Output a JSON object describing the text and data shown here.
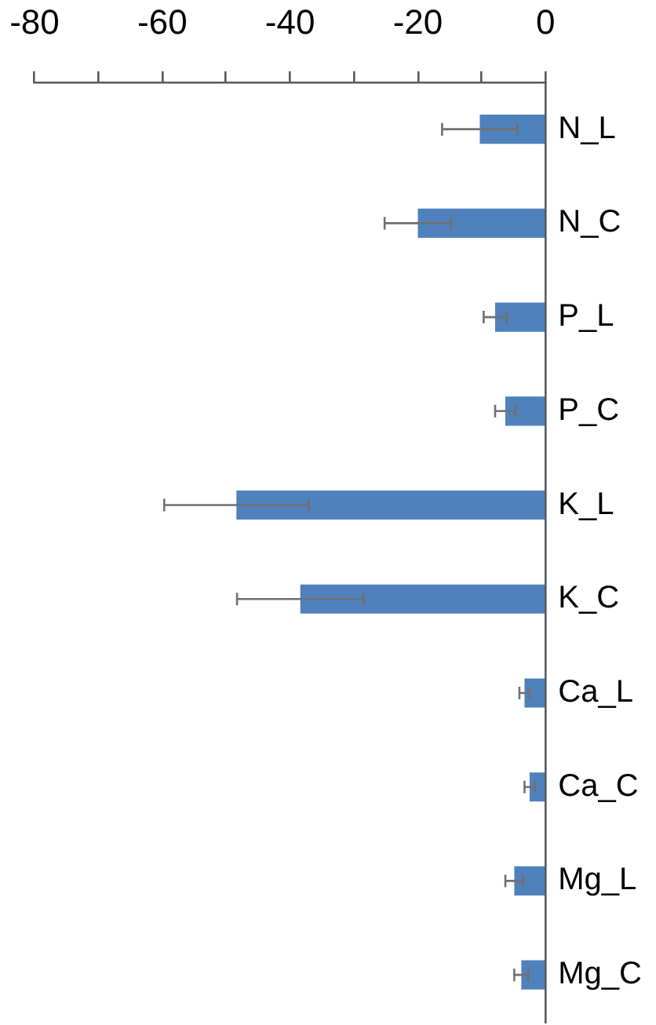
{
  "chart_data": {
    "type": "bar",
    "orientation": "horizontal",
    "categories": [
      "N_L",
      "N_C",
      "P_L",
      "P_C",
      "K_L",
      "K_C",
      "Ca_L",
      "Ca_C",
      "Mg_L",
      "Mg_C"
    ],
    "values": [
      -10.3,
      -20.0,
      -7.9,
      -6.3,
      -48.4,
      -38.4,
      -3.3,
      -2.5,
      -4.9,
      -3.8
    ],
    "errors": [
      5.9,
      5.2,
      1.8,
      1.6,
      11.3,
      9.9,
      0.8,
      0.8,
      1.4,
      1.1
    ],
    "color": "#4f81bd",
    "xlim": [
      -80,
      0
    ],
    "xticks": [
      -80,
      {
        "value": -70,
        "label": null
      },
      -60,
      {
        "value": -50,
        "label": null
      },
      -40,
      {
        "value": -30,
        "label": null
      },
      -20,
      {
        "value": -10,
        "label": null
      },
      0
    ],
    "grid": false,
    "legend": false
  }
}
